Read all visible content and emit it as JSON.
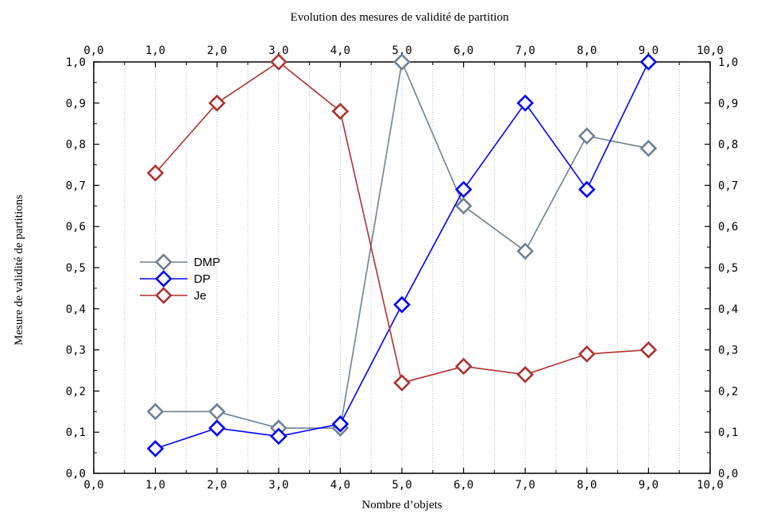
{
  "chart_data": {
    "type": "line",
    "title": "Evolution des mesures de validité de partition",
    "xlabel": "Nombre d’objets",
    "ylabel": "Mesure de validité de partitions",
    "xlim": [
      0,
      10
    ],
    "ylim": [
      0,
      1
    ],
    "x_ticks": [
      "0,0",
      "1,0",
      "2,0",
      "3,0",
      "4,0",
      "5,0",
      "6,0",
      "7,0",
      "8,0",
      "9,0",
      "10,0"
    ],
    "y_ticks": [
      "0,0",
      "0,1",
      "0,2",
      "0,3",
      "0,4",
      "0,5",
      "0,6",
      "0,7",
      "0,8",
      "0,9",
      "1,0"
    ],
    "grid": "vertical dotted, every 0.5",
    "legend_position": "left-middle",
    "x": [
      1,
      2,
      3,
      4,
      5,
      6,
      7,
      8,
      9
    ],
    "series": [
      {
        "name": "DMP",
        "color": "#708090",
        "values": [
          0.15,
          0.15,
          0.11,
          0.11,
          1.0,
          0.65,
          0.54,
          0.82,
          0.79
        ]
      },
      {
        "name": "DP",
        "color": "#0000ff",
        "values": [
          0.06,
          0.11,
          0.09,
          0.12,
          0.41,
          0.69,
          0.9,
          0.69,
          1.0
        ]
      },
      {
        "name": "Je",
        "color": "#b03030",
        "values": [
          0.73,
          0.9,
          1.0,
          0.88,
          0.22,
          0.26,
          0.24,
          0.29,
          0.3
        ]
      }
    ]
  }
}
